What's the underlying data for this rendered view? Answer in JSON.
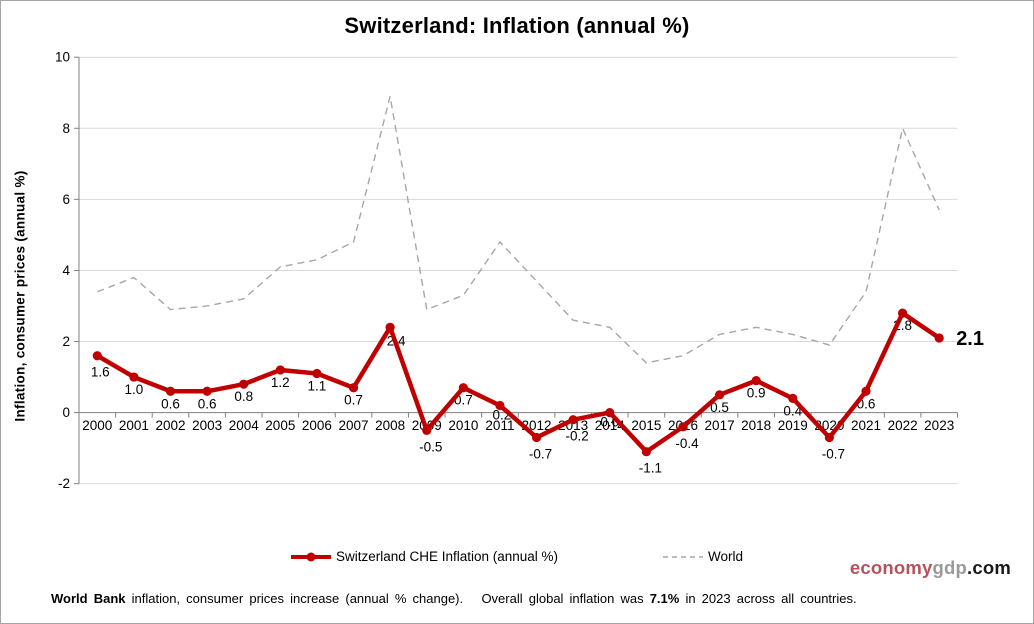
{
  "page": {
    "branding": {
      "economy": "economy",
      "gdp": "gdp",
      "com": ".com"
    },
    "footer": {
      "bold_lead": "World Bank",
      "text_mid": " inflation, consumer prices increase (annual % change).   Overall global inflation was ",
      "bold_value": "7.1%",
      "text_tail": " in 2023 across all countries."
    }
  },
  "legend": {
    "switzerland": "Switzerland CHE Inflation (annual %)",
    "world": "World"
  },
  "colors": {
    "switzerland_line": "#C00000",
    "world_line": "#A6A6A6",
    "gridline": "#D9D9D9",
    "axis": "#808080",
    "label_text": "#000000",
    "branding_economy": "#B5535B",
    "branding_gdp": "#9A9A9A",
    "branding_com": "#1A1A1A"
  },
  "chart_data": {
    "type": "line",
    "title": "Switzerland: Inflation (annual %)",
    "xlabel": "",
    "ylabel": "Inflation,  consumer  prices  (annual  %)",
    "ylim": [
      -2,
      10
    ],
    "yticks": [
      -2,
      0,
      2,
      4,
      6,
      8,
      10
    ],
    "grid": "horizontal",
    "legend_position": "bottom",
    "categories": [
      "2000",
      "2001",
      "2002",
      "2003",
      "2004",
      "2005",
      "2006",
      "2007",
      "2008",
      "2009",
      "2010",
      "2011",
      "2012",
      "2013",
      "2014",
      "2015",
      "2016",
      "2017",
      "2018",
      "2019",
      "2020",
      "2021",
      "2022",
      "2023"
    ],
    "series": [
      {
        "name": "Switzerland CHE Inflation (annual %)",
        "style": "solid",
        "color": "#C00000",
        "values": [
          1.6,
          1.0,
          0.6,
          0.6,
          0.8,
          1.2,
          1.1,
          0.7,
          2.4,
          -0.5,
          0.7,
          0.2,
          -0.7,
          -0.2,
          0.0,
          -1.1,
          -0.4,
          0.5,
          0.9,
          0.4,
          -0.7,
          0.6,
          2.8,
          2.1
        ],
        "labels": [
          "1.6",
          "1.0",
          "0.6",
          "0.6",
          "0.8",
          "1.2",
          "1.1",
          "0.7",
          "2.4",
          "-0.5",
          "0.7",
          "0.2",
          "-0.7",
          "-0.2",
          "0.0",
          "-1.1",
          "-0.4",
          "0.5",
          "0.9",
          "0.4",
          "-0.7",
          "0.6",
          "2.8",
          "2.1"
        ],
        "end_label": "2.1"
      },
      {
        "name": "World",
        "style": "dashed",
        "color": "#A6A6A6",
        "values": [
          3.4,
          3.8,
          2.9,
          3.0,
          3.2,
          4.1,
          4.3,
          4.8,
          8.9,
          2.9,
          3.3,
          4.8,
          3.7,
          2.6,
          2.4,
          1.4,
          1.6,
          2.2,
          2.4,
          2.2,
          1.9,
          3.4,
          8.0,
          5.7
        ]
      }
    ]
  }
}
